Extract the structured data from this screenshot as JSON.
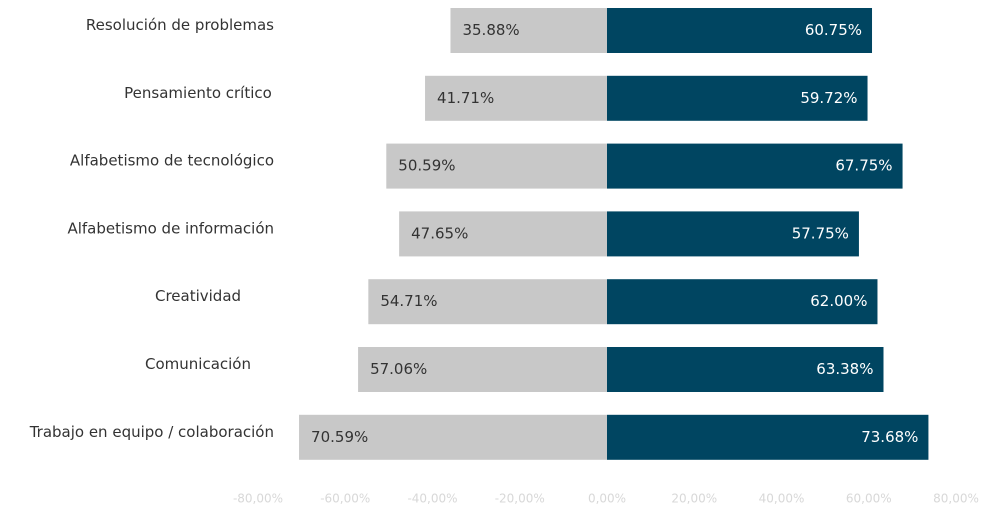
{
  "chart_data": {
    "type": "diverging-bar",
    "categories": [
      "Resolución de problemas",
      "Pensamiento crítico",
      "Alfabetismo de tecnológico",
      "Alfabetismo de información",
      "Creatividad",
      "Comunicación",
      "Trabajo en equipo / colaboración"
    ],
    "series": [
      {
        "color": "#c8c8c8",
        "values": [
          -35.88,
          -41.71,
          -50.59,
          -47.65,
          -54.71,
          -57.06,
          -70.59
        ],
        "value_labels": [
          "35.88%",
          "41.71%",
          "50.59%",
          "47.65%",
          "54.71%",
          "57.06%",
          "70.59%"
        ]
      },
      {
        "color": "#004561",
        "values": [
          60.75,
          59.72,
          67.75,
          57.75,
          62.0,
          63.38,
          73.68
        ],
        "value_labels": [
          "60.75%",
          "59.72%",
          "67.75%",
          "57.75%",
          "62.00%",
          "63.38%",
          "73.68%"
        ]
      }
    ],
    "xlim": [
      -80,
      80
    ],
    "xticks": [
      {
        "value": -80,
        "label": "-80,00%"
      },
      {
        "value": -60,
        "label": "-60,00%"
      },
      {
        "value": -40,
        "label": "-40,00%"
      },
      {
        "value": -20,
        "label": "-20,00%"
      },
      {
        "value": 0,
        "label": "0,00%"
      },
      {
        "value": 20,
        "label": "20,00%"
      },
      {
        "value": 40,
        "label": "40,00%"
      },
      {
        "value": 60,
        "label": "60,00%"
      },
      {
        "value": 80,
        "label": "80,00%"
      }
    ]
  }
}
